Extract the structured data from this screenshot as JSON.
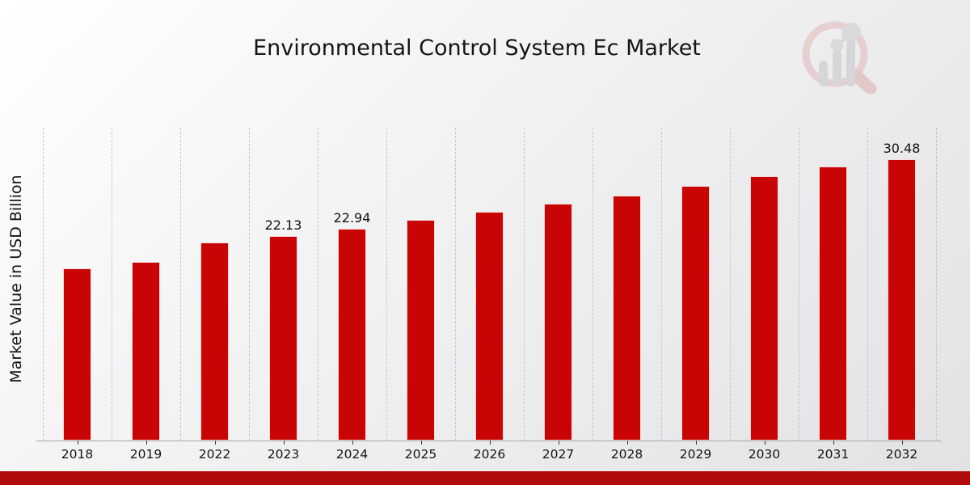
{
  "title": "Environmental Control System Ec Market",
  "ylabel": "Market Value in USD Billion",
  "colors": {
    "bar": "#c80404",
    "footer_band": "#b10b0b",
    "gridline": "#c5c5c7",
    "axis": "#a8a8aa",
    "text": "#141414"
  },
  "chart_data": {
    "type": "bar",
    "title": "Environmental Control System Ec Market",
    "xlabel": "",
    "ylabel": "Market Value in USD Billion",
    "categories": [
      "2018",
      "2019",
      "2022",
      "2023",
      "2024",
      "2025",
      "2026",
      "2027",
      "2028",
      "2029",
      "2030",
      "2031",
      "2032"
    ],
    "values": [
      18.65,
      19.35,
      21.42,
      22.13,
      22.94,
      23.9,
      24.76,
      25.65,
      26.53,
      27.55,
      28.57,
      29.62,
      30.48
    ],
    "data_labels": [
      null,
      null,
      null,
      "22.13",
      "22.94",
      null,
      null,
      null,
      null,
      null,
      null,
      null,
      "30.48"
    ],
    "ylim": [
      0,
      33.85
    ],
    "grid": "vertical dashed gridlines at category boundaries",
    "legend": "none",
    "bar_color": "#c80404"
  }
}
